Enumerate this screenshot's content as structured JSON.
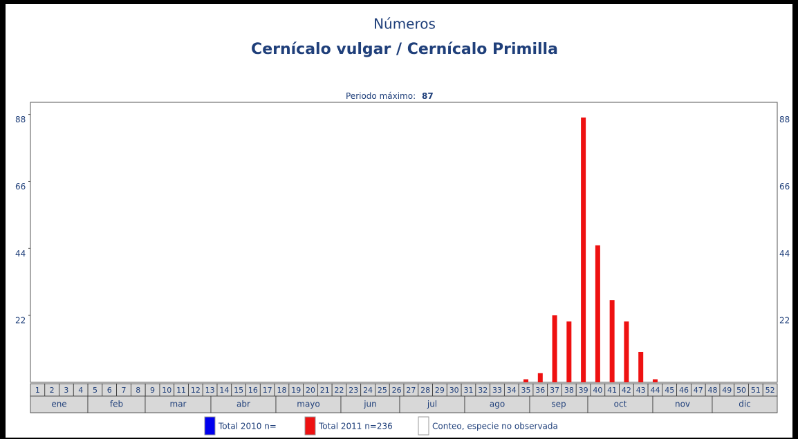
{
  "chart_data": {
    "type": "bar",
    "title": "Números",
    "subtitle": "Cernícalo vulgar / Cernícalo Primilla",
    "max_label": "Periodo máximo:",
    "max_value": 87,
    "categories": [
      1,
      2,
      3,
      4,
      5,
      6,
      7,
      8,
      9,
      10,
      11,
      12,
      13,
      14,
      15,
      16,
      17,
      18,
      19,
      20,
      21,
      22,
      23,
      24,
      25,
      26,
      27,
      28,
      29,
      30,
      31,
      32,
      33,
      34,
      35,
      36,
      37,
      38,
      39,
      40,
      41,
      42,
      43,
      44,
      45,
      46,
      47,
      48,
      49,
      50,
      51,
      52
    ],
    "months": [
      "ene",
      "feb",
      "mar",
      "abr",
      "mayo",
      "jun",
      "jul",
      "ago",
      "sep",
      "oct",
      "nov",
      "dic"
    ],
    "values": [
      0,
      0,
      0,
      0,
      0,
      0,
      0,
      0,
      0,
      0,
      0,
      0,
      0,
      0,
      0,
      0,
      0,
      0,
      0,
      0,
      0,
      0,
      0,
      0,
      0,
      0,
      0,
      0,
      0,
      0,
      0,
      0,
      0,
      0,
      1,
      3,
      22,
      20,
      87,
      45,
      27,
      20,
      10,
      1,
      0,
      0,
      0,
      0,
      0,
      0,
      0,
      0
    ],
    "color": "#ee1111",
    "ylim": [
      0,
      92
    ],
    "yticks": [
      22,
      44,
      66,
      88
    ],
    "legend": [
      {
        "label": "Total 2010 n=",
        "color": "#0000ee"
      },
      {
        "label": "Total 2011 n=236",
        "color": "#ee1111"
      },
      {
        "label": "Conteo, especie no observada",
        "color": "#ffffff"
      }
    ]
  }
}
